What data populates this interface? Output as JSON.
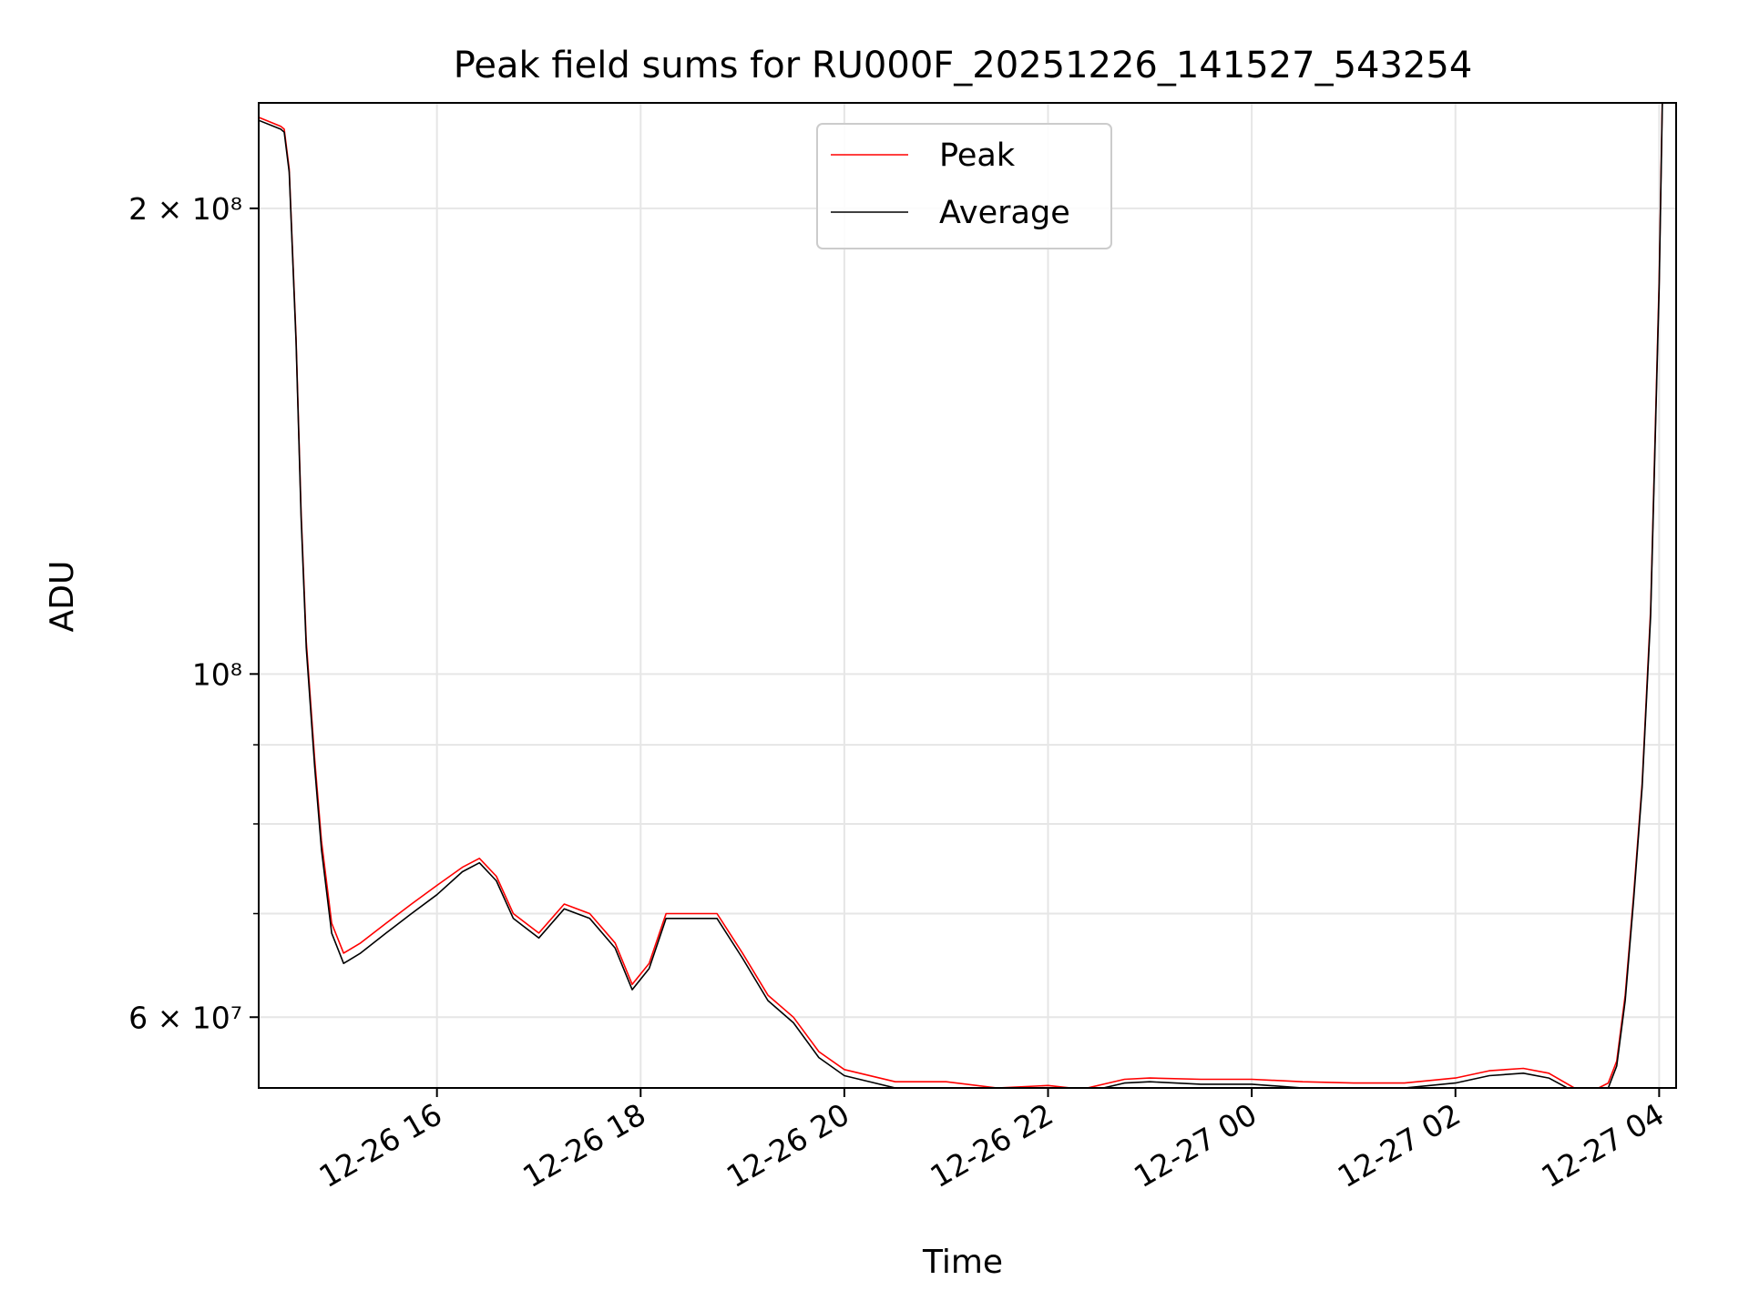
{
  "chart_data": {
    "type": "line",
    "title": "Peak field sums for RU000F_20251226_141527_543254",
    "xlabel": "Time",
    "ylabel": "ADU",
    "y_scale": "log",
    "grid": true,
    "legend_position": "upper center",
    "xlim": [
      "2025-12-26 14:15",
      "2025-12-27 04:10"
    ],
    "ylim": [
      54000000,
      234000000
    ],
    "x_ticks": [
      {
        "value": "2025-12-26 16:00",
        "label": "12-26 16"
      },
      {
        "value": "2025-12-26 18:00",
        "label": "12-26 18"
      },
      {
        "value": "2025-12-26 20:00",
        "label": "12-26 20"
      },
      {
        "value": "2025-12-26 22:00",
        "label": "12-26 22"
      },
      {
        "value": "2025-12-27 00:00",
        "label": "12-27 00"
      },
      {
        "value": "2025-12-27 02:00",
        "label": "12-27 02"
      },
      {
        "value": "2025-12-27 04:00",
        "label": "12-27 04"
      }
    ],
    "y_ticks": [
      {
        "value": 200000000,
        "label": "2 × 10⁸"
      },
      {
        "value": 100000000,
        "label": "10⁸"
      },
      {
        "value": 60000000,
        "label": "6 × 10⁷"
      }
    ],
    "y_minor_ticks": [
      70000000,
      80000000,
      90000000
    ],
    "series": [
      {
        "name": "Peak",
        "color": "#ff0000",
        "x": [
          "2025-12-26 14:15",
          "2025-12-26 14:28",
          "2025-12-26 14:30",
          "2025-12-26 14:33",
          "2025-12-26 14:37",
          "2025-12-26 14:40",
          "2025-12-26 14:43",
          "2025-12-26 14:48",
          "2025-12-26 14:52",
          "2025-12-26 14:58",
          "2025-12-26 15:05",
          "2025-12-26 15:15",
          "2025-12-26 15:30",
          "2025-12-26 15:45",
          "2025-12-26 16:00",
          "2025-12-26 16:15",
          "2025-12-26 16:25",
          "2025-12-26 16:35",
          "2025-12-26 16:45",
          "2025-12-26 17:00",
          "2025-12-26 17:15",
          "2025-12-26 17:30",
          "2025-12-26 17:45",
          "2025-12-26 17:55",
          "2025-12-26 18:05",
          "2025-12-26 18:15",
          "2025-12-26 18:30",
          "2025-12-26 18:45",
          "2025-12-26 19:00",
          "2025-12-26 19:15",
          "2025-12-26 19:30",
          "2025-12-26 19:45",
          "2025-12-26 20:00",
          "2025-12-26 20:30",
          "2025-12-26 21:00",
          "2025-12-26 21:30",
          "2025-12-26 22:00",
          "2025-12-26 22:20",
          "2025-12-26 22:45",
          "2025-12-26 23:00",
          "2025-12-26 23:30",
          "2025-12-27 00:00",
          "2025-12-27 00:30",
          "2025-12-27 01:00",
          "2025-12-27 01:30",
          "2025-12-27 02:00",
          "2025-12-27 02:20",
          "2025-12-27 02:40",
          "2025-12-27 02:55",
          "2025-12-27 03:10",
          "2025-12-27 03:20",
          "2025-12-27 03:30",
          "2025-12-27 03:35",
          "2025-12-27 03:40",
          "2025-12-27 03:45",
          "2025-12-27 03:50",
          "2025-12-27 03:55",
          "2025-12-27 04:00",
          "2025-12-27 04:02"
        ],
        "values": [
          229000000,
          226000000,
          225000000,
          212000000,
          165000000,
          127000000,
          105000000,
          88000000,
          78000000,
          69000000,
          66000000,
          67000000,
          69000000,
          71000000,
          73000000,
          75000000,
          76000000,
          74000000,
          70000000,
          68000000,
          71000000,
          70000000,
          67000000,
          63000000,
          65000000,
          70000000,
          70000000,
          70000000,
          66000000,
          62000000,
          60000000,
          57000000,
          55500000,
          54500000,
          54500000,
          54000000,
          54200000,
          53900000,
          54700000,
          54800000,
          54700000,
          54700000,
          54500000,
          54400000,
          54400000,
          54800000,
          55400000,
          55600000,
          55200000,
          54000000,
          53700000,
          54400000,
          56200000,
          62000000,
          72000000,
          85000000,
          110000000,
          180000000,
          240000000
        ]
      },
      {
        "name": "Average",
        "color": "#000000",
        "x": [
          "2025-12-26 14:15",
          "2025-12-26 14:28",
          "2025-12-26 14:30",
          "2025-12-26 14:33",
          "2025-12-26 14:37",
          "2025-12-26 14:40",
          "2025-12-26 14:43",
          "2025-12-26 14:48",
          "2025-12-26 14:52",
          "2025-12-26 14:58",
          "2025-12-26 15:05",
          "2025-12-26 15:15",
          "2025-12-26 15:30",
          "2025-12-26 15:45",
          "2025-12-26 16:00",
          "2025-12-26 16:15",
          "2025-12-26 16:25",
          "2025-12-26 16:35",
          "2025-12-26 16:45",
          "2025-12-26 17:00",
          "2025-12-26 17:15",
          "2025-12-26 17:30",
          "2025-12-26 17:45",
          "2025-12-26 17:55",
          "2025-12-26 18:05",
          "2025-12-26 18:15",
          "2025-12-26 18:30",
          "2025-12-26 18:45",
          "2025-12-26 19:00",
          "2025-12-26 19:15",
          "2025-12-26 19:30",
          "2025-12-26 19:45",
          "2025-12-26 20:00",
          "2025-12-26 20:30",
          "2025-12-26 21:00",
          "2025-12-26 21:30",
          "2025-12-26 22:00",
          "2025-12-26 22:20",
          "2025-12-26 22:45",
          "2025-12-26 23:00",
          "2025-12-26 23:30",
          "2025-12-27 00:00",
          "2025-12-27 00:30",
          "2025-12-27 01:00",
          "2025-12-27 01:30",
          "2025-12-27 02:00",
          "2025-12-27 02:20",
          "2025-12-27 02:40",
          "2025-12-27 02:55",
          "2025-12-27 03:10",
          "2025-12-27 03:20",
          "2025-12-27 03:30",
          "2025-12-27 03:35",
          "2025-12-27 03:40",
          "2025-12-27 03:45",
          "2025-12-27 03:50",
          "2025-12-27 03:55",
          "2025-12-27 04:00",
          "2025-12-27 04:02"
        ],
        "values": [
          228000000,
          225000000,
          224000000,
          211000000,
          164000000,
          126000000,
          104000000,
          87000000,
          77000000,
          68000000,
          65000000,
          66000000,
          68000000,
          70000000,
          72000000,
          74500000,
          75500000,
          73500000,
          69500000,
          67500000,
          70500000,
          69500000,
          66500000,
          62500000,
          64500000,
          69500000,
          69500000,
          69500000,
          65500000,
          61500000,
          59500000,
          56500000,
          55000000,
          54000000,
          54000000,
          53600000,
          53900000,
          53600000,
          54400000,
          54500000,
          54300000,
          54300000,
          54000000,
          54000000,
          54000000,
          54400000,
          55000000,
          55200000,
          54800000,
          53700000,
          53300000,
          54000000,
          55800000,
          61500000,
          71500000,
          84500000,
          109000000,
          178000000,
          238000000
        ]
      }
    ]
  }
}
